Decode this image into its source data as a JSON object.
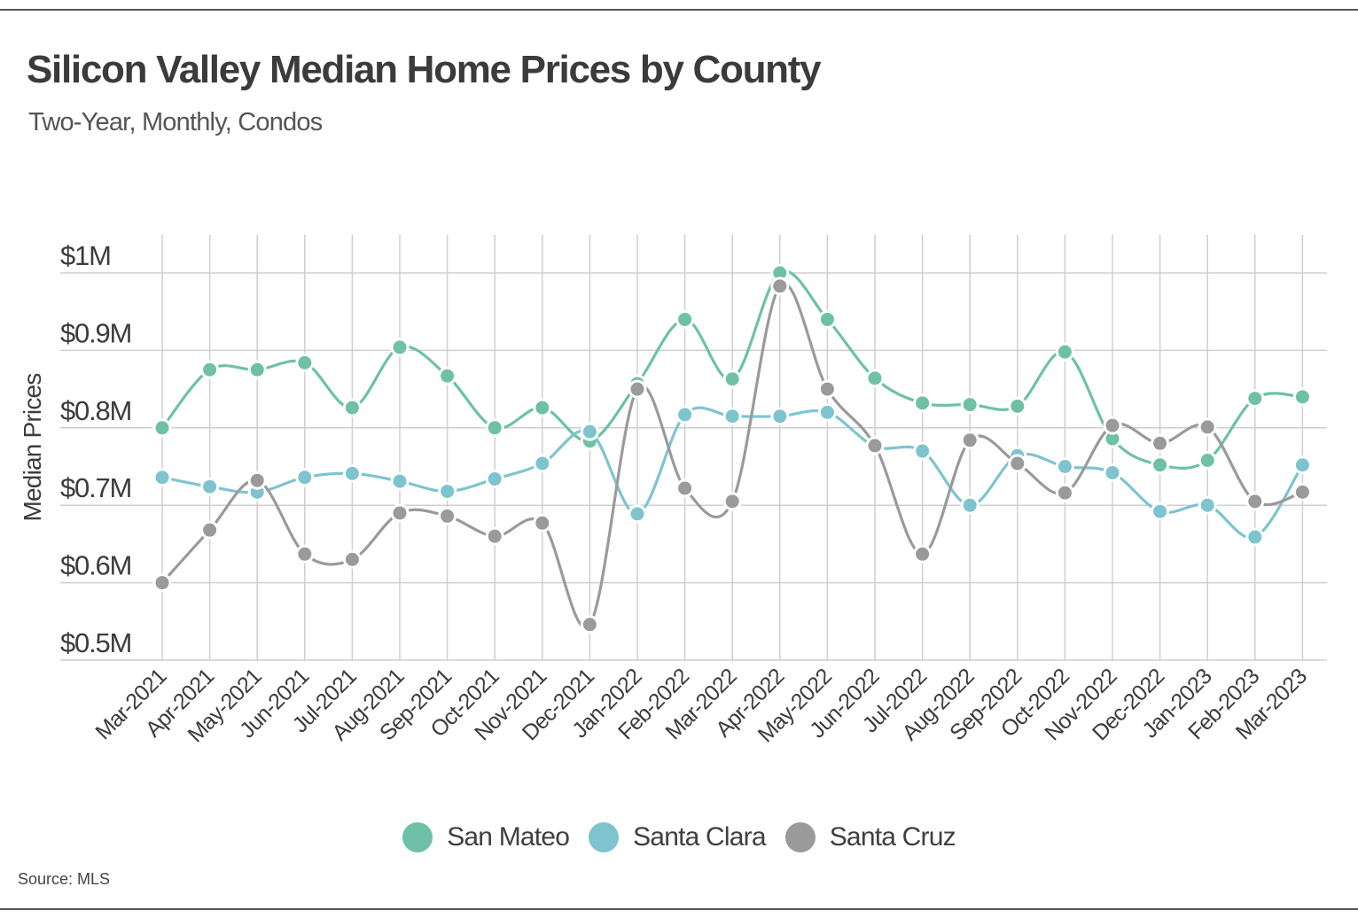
{
  "header": {
    "title": "Silicon Valley Median Home Prices by County",
    "subtitle": "Two-Year, Monthly, Condos"
  },
  "source": "Source:  MLS",
  "colors": {
    "san_mateo": "#6ec1a6",
    "santa_clara": "#7ec4cf",
    "santa_cruz": "#9a9a9a",
    "grid": "#cfcfcf",
    "axis_text": "#3c3c3c"
  },
  "chart_data": {
    "type": "line",
    "title": "Silicon Valley Median Home Prices by County",
    "subtitle": "Two-Year, Monthly, Condos",
    "xlabel": "",
    "ylabel": "Median Prices",
    "ylim": [
      0.5,
      1.0
    ],
    "y_ticks": [
      1.0,
      0.9,
      0.8,
      0.7,
      0.6,
      0.5
    ],
    "y_tick_labels": [
      "$1M",
      "$0.9M",
      "$0.8M",
      "$0.7M",
      "$0.6M",
      "$0.5M"
    ],
    "grid": true,
    "legend_position": "bottom-center",
    "categories": [
      "Mar-2021",
      "Apr-2021",
      "May-2021",
      "Jun-2021",
      "Jul-2021",
      "Aug-2021",
      "Sep-2021",
      "Oct-2021",
      "Nov-2021",
      "Dec-2021",
      "Jan-2022",
      "Feb-2022",
      "Mar-2022",
      "Apr-2022",
      "May-2022",
      "Jun-2022",
      "Jul-2022",
      "Aug-2022",
      "Sep-2022",
      "Oct-2022",
      "Nov-2022",
      "Dec-2022",
      "Jan-2023",
      "Feb-2023",
      "Mar-2023"
    ],
    "series": [
      {
        "name": "San Mateo",
        "color": "#6ec1a6",
        "values": [
          0.8,
          0.875,
          0.875,
          0.884,
          0.826,
          0.904,
          0.867,
          0.8,
          0.826,
          0.783,
          0.857,
          0.94,
          0.863,
          1.0,
          0.94,
          0.864,
          0.832,
          0.83,
          0.828,
          0.898,
          0.786,
          0.752,
          0.758,
          0.838,
          0.84
        ]
      },
      {
        "name": "Santa Clara",
        "color": "#7ec4cf",
        "values": [
          0.736,
          0.724,
          0.717,
          0.736,
          0.741,
          0.731,
          0.718,
          0.734,
          0.754,
          0.795,
          0.689,
          0.817,
          0.815,
          0.815,
          0.82,
          0.776,
          0.77,
          0.7,
          0.764,
          0.75,
          0.742,
          0.692,
          0.7,
          0.659,
          0.752
        ]
      },
      {
        "name": "Santa Cruz",
        "color": "#9a9a9a",
        "values": [
          0.6,
          0.668,
          0.732,
          0.637,
          0.63,
          0.69,
          0.686,
          0.66,
          0.677,
          0.546,
          0.85,
          0.722,
          0.705,
          0.983,
          0.85,
          0.777,
          0.637,
          0.784,
          0.754,
          0.716,
          0.803,
          0.78,
          0.801,
          0.705,
          0.717
        ]
      }
    ]
  }
}
